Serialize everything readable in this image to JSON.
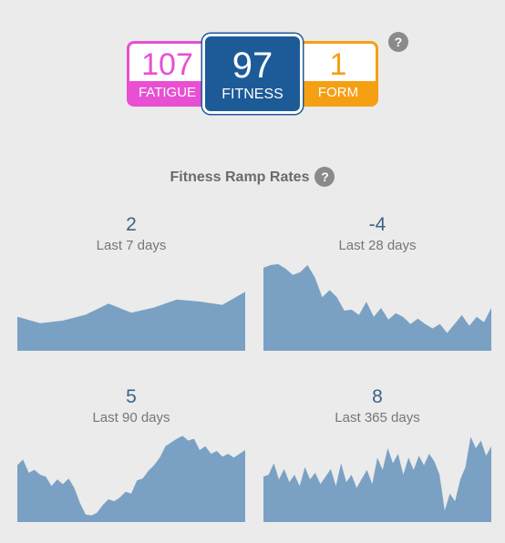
{
  "summary": {
    "fatigue": {
      "value": "107",
      "label": "FATIGUE",
      "color": "#e84fd3"
    },
    "fitness": {
      "value": "97",
      "label": "FITNESS",
      "color": "#1d5a98"
    },
    "form": {
      "value": "1",
      "label": "FORM",
      "color": "#f5a013"
    },
    "help_icon": "question-mark-icon"
  },
  "ramp": {
    "title": "Fitness Ramp Rates",
    "help_icon": "question-mark-icon",
    "fill_color": "#7aa1c4",
    "panels": [
      {
        "value": "2",
        "period": "Last 7 days",
        "series": [
          0.52,
          0.42,
          0.46,
          0.55,
          0.72,
          0.58,
          0.66,
          0.78,
          0.75,
          0.7,
          0.9
        ]
      },
      {
        "value": "-4",
        "period": "Last 28 days",
        "series": [
          0.93,
          0.96,
          0.97,
          0.92,
          0.85,
          0.88,
          0.96,
          0.82,
          0.6,
          0.68,
          0.6,
          0.45,
          0.46,
          0.4,
          0.55,
          0.38,
          0.48,
          0.35,
          0.42,
          0.38,
          0.3,
          0.36,
          0.3,
          0.25,
          0.3,
          0.2,
          0.3,
          0.4,
          0.28,
          0.38,
          0.32,
          0.48
        ]
      },
      {
        "value": "5",
        "period": "Last 90 days",
        "series": [
          0.6,
          0.66,
          0.52,
          0.55,
          0.5,
          0.48,
          0.38,
          0.45,
          0.4,
          0.46,
          0.36,
          0.2,
          0.08,
          0.07,
          0.1,
          0.18,
          0.24,
          0.22,
          0.26,
          0.32,
          0.3,
          0.44,
          0.46,
          0.54,
          0.6,
          0.68,
          0.8,
          0.84,
          0.88,
          0.91,
          0.86,
          0.88,
          0.76,
          0.8,
          0.72,
          0.75,
          0.69,
          0.72,
          0.68,
          0.72,
          0.76
        ]
      },
      {
        "value": "8",
        "period": "Last 365 days",
        "series": [
          0.48,
          0.5,
          0.62,
          0.45,
          0.56,
          0.42,
          0.5,
          0.38,
          0.58,
          0.45,
          0.52,
          0.4,
          0.48,
          0.56,
          0.38,
          0.62,
          0.42,
          0.5,
          0.36,
          0.46,
          0.55,
          0.4,
          0.68,
          0.55,
          0.78,
          0.62,
          0.72,
          0.5,
          0.68,
          0.55,
          0.7,
          0.6,
          0.72,
          0.64,
          0.5,
          0.12,
          0.3,
          0.22,
          0.45,
          0.58,
          0.9,
          0.78,
          0.86,
          0.7,
          0.8
        ]
      }
    ]
  }
}
